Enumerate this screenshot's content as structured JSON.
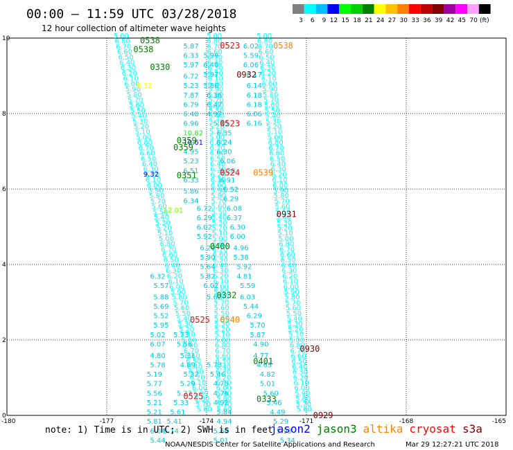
{
  "header": {
    "title": "00:00 – 11:59 UTC 03/28/2018",
    "subtitle": "12 hour collection of altimeter wave heights"
  },
  "colorbar": {
    "colors": [
      "#808080",
      "#00ffff",
      "#00c0ff",
      "#0000ff",
      "#00ff00",
      "#00d000",
      "#008000",
      "#ffff00",
      "#ffc000",
      "#ff8000",
      "#ff0000",
      "#c00000",
      "#800000",
      "#a000a0",
      "#ff00ff",
      "#ffa0ff",
      "#000000"
    ],
    "labels": [
      "3",
      "6",
      "9",
      "12",
      "15",
      "18",
      "21",
      "24",
      "27",
      "30",
      "33",
      "36",
      "39",
      "42",
      "45",
      "70",
      "(ft)"
    ]
  },
  "footer": {
    "note": "note: 1) Time is in UTC; 2) SWH is in feet",
    "satellites": [
      {
        "name": "jason2",
        "color": "#0000ff"
      },
      {
        "name": "jason3",
        "color": "#008000"
      },
      {
        "name": "altika",
        "color": "#ff8000"
      },
      {
        "name": "cryosat",
        "color": "#ff0000"
      },
      {
        "name": "s3a",
        "color": "#800000"
      }
    ],
    "credit": "NOAA/NESDIS Center for Satellite Applications and Research",
    "timestamp": "Mar 29 12:27:21 UTC 2018"
  },
  "chart_data": {
    "type": "scatter",
    "xlim": [
      -180,
      -165
    ],
    "ylim": [
      0,
      10
    ],
    "xticks": [
      "-180",
      "-177",
      "-174",
      "-171",
      "-168",
      "-165"
    ],
    "yticks": [
      "0",
      "2",
      "4",
      "6",
      "8",
      "10"
    ],
    "grid": true,
    "tracks": [
      {
        "name": "left-diagonal-track",
        "color": "#00ffff",
        "x1": -176.8,
        "y1": 10.0,
        "x2": -174.3,
        "y2": 0.1
      },
      {
        "name": "middle-track",
        "color": "#00ffff",
        "x1": -174.0,
        "y1": 10.0,
        "x2": -173.7,
        "y2": 0.1
      },
      {
        "name": "right-track",
        "color": "#00ffff",
        "x1": -172.5,
        "y1": 10.0,
        "x2": -171.3,
        "y2": 0.1
      }
    ],
    "points": [
      {
        "x": -174.7,
        "y": 9.8,
        "v": "5.87"
      },
      {
        "x": -174.7,
        "y": 9.55,
        "v": "6.33"
      },
      {
        "x": -174.1,
        "y": 9.55,
        "v": "5.99"
      },
      {
        "x": -174.7,
        "y": 9.3,
        "v": "5.97"
      },
      {
        "x": -174.1,
        "y": 9.3,
        "v": "6.40"
      },
      {
        "x": -174.7,
        "y": 9.0,
        "v": "6.72"
      },
      {
        "x": -174.1,
        "y": 9.05,
        "v": "5.97"
      },
      {
        "x": -174.7,
        "y": 8.75,
        "v": "5.23"
      },
      {
        "x": -174.1,
        "y": 8.75,
        "v": "5.86"
      },
      {
        "x": -174.7,
        "y": 8.5,
        "v": "7.87"
      },
      {
        "x": -174.0,
        "y": 8.5,
        "v": "6.36"
      },
      {
        "x": -174.7,
        "y": 8.25,
        "v": "6.79"
      },
      {
        "x": -174.0,
        "y": 8.25,
        "v": "6.47"
      },
      {
        "x": -174.7,
        "y": 8.0,
        "v": "6.48"
      },
      {
        "x": -174.0,
        "y": 8.0,
        "v": "4.97"
      },
      {
        "x": -174.7,
        "y": 7.75,
        "v": "6.96"
      },
      {
        "x": -173.8,
        "y": 7.75,
        "v": "5.45"
      },
      {
        "x": -174.7,
        "y": 7.5,
        "v": "10.82",
        "color": "#00ff00"
      },
      {
        "x": -174.7,
        "y": 7.25,
        "v": "10.61",
        "color": "#0000ff"
      },
      {
        "x": -174.7,
        "y": 7.0,
        "v": "4.95"
      },
      {
        "x": -174.7,
        "y": 6.75,
        "v": "5.23"
      },
      {
        "x": -174.7,
        "y": 6.5,
        "v": "6.51"
      },
      {
        "x": -174.7,
        "y": 6.25,
        "v": "6.33"
      },
      {
        "x": -174.7,
        "y": 5.95,
        "v": "5.86"
      },
      {
        "x": -174.7,
        "y": 5.7,
        "v": "6.34"
      },
      {
        "x": -175.3,
        "y": 5.45,
        "v": "12.01",
        "color": "#80ff00"
      },
      {
        "x": -175.9,
        "y": 6.4,
        "v": "9.32",
        "color": "#0000ff"
      },
      {
        "x": -172.9,
        "y": 9.8,
        "v": "6.02"
      },
      {
        "x": -172.9,
        "y": 9.55,
        "v": "5.59"
      },
      {
        "x": -172.9,
        "y": 9.3,
        "v": "6.06"
      },
      {
        "x": -172.8,
        "y": 9.05,
        "v": "6.17"
      },
      {
        "x": -172.8,
        "y": 8.75,
        "v": "6.14"
      },
      {
        "x": -172.8,
        "y": 8.5,
        "v": "6.18"
      },
      {
        "x": -172.8,
        "y": 8.25,
        "v": "6.18"
      },
      {
        "x": -172.8,
        "y": 8.0,
        "v": "6.06"
      },
      {
        "x": -172.8,
        "y": 7.75,
        "v": "6.16"
      },
      {
        "x": -173.7,
        "y": 7.5,
        "v": "6.35"
      },
      {
        "x": -173.7,
        "y": 7.25,
        "v": "6.24"
      },
      {
        "x": -173.7,
        "y": 7.0,
        "v": "6.30"
      },
      {
        "x": -173.6,
        "y": 6.75,
        "v": "6.06"
      },
      {
        "x": -173.6,
        "y": 6.5,
        "v": "6.28"
      },
      {
        "x": -173.6,
        "y": 6.25,
        "v": "6.91"
      },
      {
        "x": -173.5,
        "y": 6.0,
        "v": "6.52"
      },
      {
        "x": -173.5,
        "y": 5.75,
        "v": "6.29"
      },
      {
        "x": -173.4,
        "y": 5.5,
        "v": "6.08"
      },
      {
        "x": -173.4,
        "y": 5.25,
        "v": "6.37"
      },
      {
        "x": -173.3,
        "y": 5.0,
        "v": "6.30"
      },
      {
        "x": -173.3,
        "y": 4.75,
        "v": "6.00"
      },
      {
        "x": -173.2,
        "y": 4.45,
        "v": "4.96"
      },
      {
        "x": -173.2,
        "y": 4.2,
        "v": "5.38"
      },
      {
        "x": -173.1,
        "y": 3.95,
        "v": "5.92"
      },
      {
        "x": -173.1,
        "y": 3.7,
        "v": "4.81"
      },
      {
        "x": -173.0,
        "y": 3.45,
        "v": "5.59"
      },
      {
        "x": -173.0,
        "y": 3.15,
        "v": "6.03"
      },
      {
        "x": -172.9,
        "y": 2.9,
        "v": "5.44"
      },
      {
        "x": -172.8,
        "y": 2.65,
        "v": "6.29"
      },
      {
        "x": -172.7,
        "y": 2.4,
        "v": "5.70"
      },
      {
        "x": -172.7,
        "y": 2.15,
        "v": "5.87"
      },
      {
        "x": -172.6,
        "y": 1.9,
        "v": "4.90"
      },
      {
        "x": -172.6,
        "y": 1.6,
        "v": "4.77"
      },
      {
        "x": -172.5,
        "y": 1.35,
        "v": "4.65"
      },
      {
        "x": -172.4,
        "y": 1.1,
        "v": "4.82"
      },
      {
        "x": -172.4,
        "y": 0.85,
        "v": "5.01"
      },
      {
        "x": -172.3,
        "y": 0.6,
        "v": "5.60"
      },
      {
        "x": -172.2,
        "y": 0.35,
        "v": "5.46"
      },
      {
        "x": -172.1,
        "y": 0.1,
        "v": "4.49"
      },
      {
        "x": -172.0,
        "y": -0.15,
        "v": "5.29"
      },
      {
        "x": -171.9,
        "y": -0.4,
        "v": "5.93"
      },
      {
        "x": -171.8,
        "y": -0.65,
        "v": "5.34"
      },
      {
        "x": -174.3,
        "y": 5.5,
        "v": "6.72"
      },
      {
        "x": -174.3,
        "y": 5.25,
        "v": "6.29"
      },
      {
        "x": -174.3,
        "y": 5.0,
        "v": "6.02"
      },
      {
        "x": -174.3,
        "y": 4.75,
        "v": "5.92"
      },
      {
        "x": -174.2,
        "y": 4.45,
        "v": "6.29"
      },
      {
        "x": -174.2,
        "y": 4.2,
        "v": "5.90"
      },
      {
        "x": -174.2,
        "y": 3.95,
        "v": "5.64"
      },
      {
        "x": -174.2,
        "y": 3.7,
        "v": "5.82"
      },
      {
        "x": -174.1,
        "y": 3.45,
        "v": "6.02"
      },
      {
        "x": -174.0,
        "y": 3.15,
        "v": "5.62"
      },
      {
        "x": -175.7,
        "y": 3.7,
        "v": "6.32"
      },
      {
        "x": -175.6,
        "y": 3.45,
        "v": "5.57"
      },
      {
        "x": -175.6,
        "y": 3.15,
        "v": "5.88"
      },
      {
        "x": -175.6,
        "y": 2.9,
        "v": "5.69"
      },
      {
        "x": -175.6,
        "y": 2.65,
        "v": "5.52"
      },
      {
        "x": -175.6,
        "y": 2.4,
        "v": "5.95"
      },
      {
        "x": -175.7,
        "y": 2.15,
        "v": "5.02"
      },
      {
        "x": -175.7,
        "y": 1.9,
        "v": "6.07"
      },
      {
        "x": -175.7,
        "y": 1.6,
        "v": "4.80"
      },
      {
        "x": -175.7,
        "y": 1.35,
        "v": "5.78"
      },
      {
        "x": -175.8,
        "y": 1.1,
        "v": "5.19"
      },
      {
        "x": -175.8,
        "y": 0.85,
        "v": "5.77"
      },
      {
        "x": -175.8,
        "y": 0.6,
        "v": "5.56"
      },
      {
        "x": -175.8,
        "y": 0.35,
        "v": "5.21"
      },
      {
        "x": -175.8,
        "y": 0.1,
        "v": "5.21"
      },
      {
        "x": -175.8,
        "y": -0.15,
        "v": "5.81"
      },
      {
        "x": -175.7,
        "y": -0.4,
        "v": "6.04"
      },
      {
        "x": -175.7,
        "y": -0.65,
        "v": "5.44"
      },
      {
        "x": -175.0,
        "y": 2.15,
        "v": "5.73"
      },
      {
        "x": -174.9,
        "y": 1.9,
        "v": "5.56"
      },
      {
        "x": -174.8,
        "y": 1.6,
        "v": "5.31"
      },
      {
        "x": -174.8,
        "y": 1.35,
        "v": "4.89"
      },
      {
        "x": -174.7,
        "y": 1.1,
        "v": "5.32"
      },
      {
        "x": -174.8,
        "y": 0.85,
        "v": "5.29"
      },
      {
        "x": -174.9,
        "y": 0.6,
        "v": "5.23"
      },
      {
        "x": -175.0,
        "y": 0.35,
        "v": "5.33"
      },
      {
        "x": -175.1,
        "y": 0.1,
        "v": "5.61"
      },
      {
        "x": -175.2,
        "y": -0.15,
        "v": "5.41"
      },
      {
        "x": -175.3,
        "y": -0.4,
        "v": "5.14"
      },
      {
        "x": -174.0,
        "y": 1.35,
        "v": "5.73"
      },
      {
        "x": -173.9,
        "y": 1.1,
        "v": "5.46"
      },
      {
        "x": -173.8,
        "y": 0.85,
        "v": "4.75"
      },
      {
        "x": -173.8,
        "y": 0.6,
        "v": "4.76"
      },
      {
        "x": -173.8,
        "y": 0.35,
        "v": "4.92"
      },
      {
        "x": -173.7,
        "y": 0.1,
        "v": "5.84"
      },
      {
        "x": -173.7,
        "y": -0.15,
        "v": "4.94"
      },
      {
        "x": -173.8,
        "y": -0.4,
        "v": "5.68"
      },
      {
        "x": -173.8,
        "y": -0.65,
        "v": "5.01"
      },
      {
        "x": -176.1,
        "y": 8.75,
        "v": "6.32",
        "color": "#ffff00"
      }
    ],
    "time_labels": [
      {
        "x": -176.0,
        "y": 9.95,
        "t": "0538",
        "color": "#008000"
      },
      {
        "x": -176.2,
        "y": 9.72,
        "t": "0538",
        "color": "#008000"
      },
      {
        "x": -175.7,
        "y": 9.25,
        "t": "0330",
        "color": "#008000"
      },
      {
        "x": -173.6,
        "y": 9.82,
        "t": "0523",
        "color": "#ff0000"
      },
      {
        "x": -172.0,
        "y": 9.82,
        "t": "0538",
        "color": "#ff8000"
      },
      {
        "x": -173.1,
        "y": 9.05,
        "t": "0932",
        "color": "#800000"
      },
      {
        "x": -173.6,
        "y": 7.75,
        "t": "0523",
        "color": "#ff0000"
      },
      {
        "x": -174.9,
        "y": 7.3,
        "t": "0359",
        "color": "#008000"
      },
      {
        "x": -175.0,
        "y": 7.12,
        "t": "0359",
        "color": "#008000"
      },
      {
        "x": -173.6,
        "y": 6.45,
        "t": "0524",
        "color": "#ff0000"
      },
      {
        "x": -172.6,
        "y": 6.45,
        "t": "0539",
        "color": "#ff8000"
      },
      {
        "x": -174.9,
        "y": 6.38,
        "t": "0351",
        "color": "#008000"
      },
      {
        "x": -171.9,
        "y": 5.35,
        "t": "0931",
        "color": "#800000"
      },
      {
        "x": -173.9,
        "y": 4.5,
        "t": "0400",
        "color": "#008000"
      },
      {
        "x": -173.7,
        "y": 3.2,
        "t": "0332",
        "color": "#008000"
      },
      {
        "x": -174.5,
        "y": 2.55,
        "t": "0525",
        "color": "#ff0000"
      },
      {
        "x": -173.6,
        "y": 2.55,
        "t": "0540",
        "color": "#ff8000"
      },
      {
        "x": -171.2,
        "y": 1.78,
        "t": "0930",
        "color": "#800000"
      },
      {
        "x": -172.6,
        "y": 1.45,
        "t": "0401",
        "color": "#008000"
      },
      {
        "x": -174.7,
        "y": 0.52,
        "t": "0525",
        "color": "#ff0000"
      },
      {
        "x": -172.5,
        "y": 0.45,
        "t": "0333",
        "color": "#008000"
      },
      {
        "x": -170.8,
        "y": 0.02,
        "t": "0929",
        "color": "#800000"
      }
    ]
  }
}
